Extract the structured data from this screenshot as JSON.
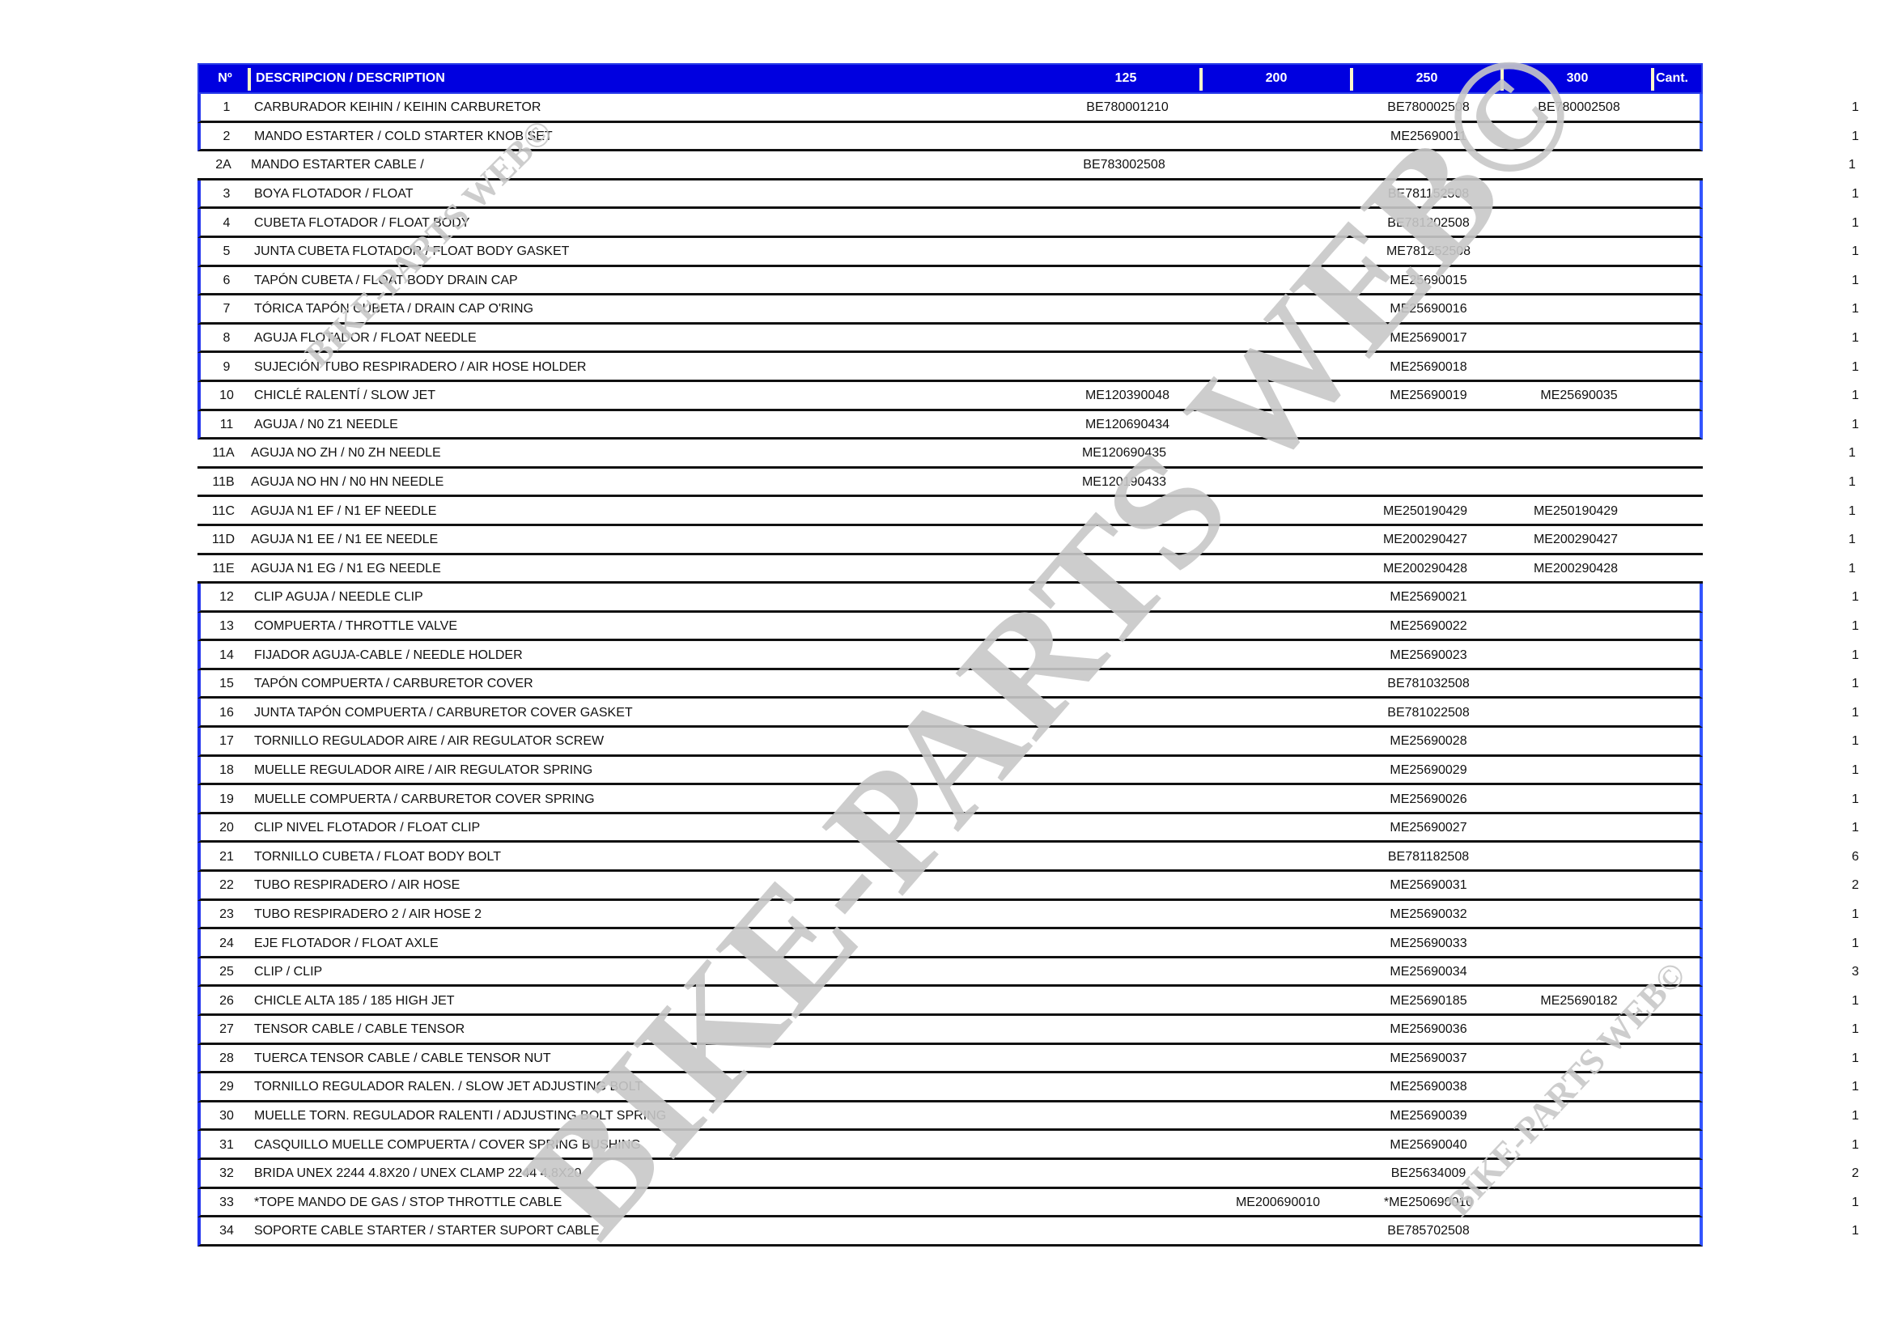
{
  "header": {
    "no": "Nº",
    "description": "DESCRIPCION / DESCRIPTION",
    "c125": "125",
    "c200": "200",
    "c250": "250",
    "c300": "300",
    "qty": "Cant."
  },
  "watermark": {
    "text": "BIKE-PARTS WEB©"
  },
  "colors": {
    "header_bg": "#0000e0",
    "group_border": "#2233ee",
    "watermark": "#c8c8c8"
  },
  "rows": [
    {
      "no": "1",
      "desc": "CARBURADOR KEIHIN / KEIHIN CARBURETOR",
      "c125": "BE780001210",
      "c200": "",
      "c250": "BE780002508",
      "c300": "BE780002508",
      "qty": "1"
    },
    {
      "no": "2",
      "desc": "MANDO ESTARTER / COLD STARTER KNOB SET",
      "c125": "",
      "c200": "",
      "c250": "ME25690011",
      "c300": "",
      "qty": "1"
    },
    {
      "no": "2A",
      "desc": "MANDO ESTARTER CABLE /",
      "c125": "BE783002508",
      "c200": "",
      "c250": "",
      "c300": "",
      "qty": "1"
    },
    {
      "no": "3",
      "desc": "BOYA FLOTADOR / FLOAT",
      "c125": "",
      "c200": "",
      "c250": "BE781152508",
      "c300": "",
      "qty": "1"
    },
    {
      "no": "4",
      "desc": "CUBETA FLOTADOR / FLOAT BODY",
      "c125": "",
      "c200": "",
      "c250": "BE781202508",
      "c300": "",
      "qty": "1"
    },
    {
      "no": "5",
      "desc": "JUNTA CUBETA FLOTADOR / FLOAT BODY GASKET",
      "c125": "",
      "c200": "",
      "c250": "ME781252508",
      "c300": "",
      "qty": "1"
    },
    {
      "no": "6",
      "desc": "TAPÓN CUBETA / FLOAT BODY DRAIN CAP",
      "c125": "",
      "c200": "",
      "c250": "ME25690015",
      "c300": "",
      "qty": "1"
    },
    {
      "no": "7",
      "desc": "TÓRICA TAPÓN CUBETA / DRAIN CAP O'RING",
      "c125": "",
      "c200": "",
      "c250": "ME25690016",
      "c300": "",
      "qty": "1"
    },
    {
      "no": "8",
      "desc": "AGUJA FLOTADOR / FLOAT NEEDLE",
      "c125": "",
      "c200": "",
      "c250": "ME25690017",
      "c300": "",
      "qty": "1"
    },
    {
      "no": "9",
      "desc": "SUJECIÓN TUBO RESPIRADERO / AIR HOSE HOLDER",
      "c125": "",
      "c200": "",
      "c250": "ME25690018",
      "c300": "",
      "qty": "1"
    },
    {
      "no": "10",
      "desc": "CHICLÉ RALENTÍ / SLOW JET",
      "c125": "ME120390048",
      "c200": "",
      "c250": "ME25690019",
      "c300": "ME25690035",
      "qty": "1"
    },
    {
      "no": "11",
      "desc": "AGUJA /  N0 Z1 NEEDLE",
      "c125": "ME120690434",
      "c200": "",
      "c250": "",
      "c300": "",
      "qty": "1"
    },
    {
      "no": "11A",
      "desc": "AGUJA NO ZH / N0 ZH NEEDLE",
      "c125": "ME120690435",
      "c200": "",
      "c250": "",
      "c300": "",
      "qty": "1"
    },
    {
      "no": "11B",
      "desc": "AGUJA NO HN / N0 HN NEEDLE",
      "c125": "ME120190433",
      "c200": "",
      "c250": "",
      "c300": "",
      "qty": "1"
    },
    {
      "no": "11C",
      "desc": "AGUJA N1 EF / N1 EF NEEDLE",
      "c125": "",
      "c200": "",
      "c250": "ME250190429",
      "c300": "ME250190429",
      "qty": "1"
    },
    {
      "no": "11D",
      "desc": "AGUJA N1 EE / N1 EE NEEDLE",
      "c125": "",
      "c200": "",
      "c250": "ME200290427",
      "c300": "ME200290427",
      "qty": "1"
    },
    {
      "no": "11E",
      "desc": "AGUJA N1 EG / N1 EG NEEDLE",
      "c125": "",
      "c200": "",
      "c250": "ME200290428",
      "c300": "ME200290428",
      "qty": "1"
    },
    {
      "no": "12",
      "desc": "CLIP AGUJA / NEEDLE CLIP",
      "c125": "",
      "c200": "",
      "c250": "ME25690021",
      "c300": "",
      "qty": "1"
    },
    {
      "no": "13",
      "desc": "COMPUERTA / THROTTLE VALVE",
      "c125": "",
      "c200": "",
      "c250": "ME25690022",
      "c300": "",
      "qty": "1"
    },
    {
      "no": "14",
      "desc": "FIJADOR AGUJA-CABLE / NEEDLE HOLDER",
      "c125": "",
      "c200": "",
      "c250": "ME25690023",
      "c300": "",
      "qty": "1"
    },
    {
      "no": "15",
      "desc": "TAPÓN COMPUERTA / CARBURETOR COVER",
      "c125": "",
      "c200": "",
      "c250": "BE781032508",
      "c300": "",
      "qty": "1"
    },
    {
      "no": "16",
      "desc": "JUNTA TAPÓN COMPUERTA / CARBURETOR COVER GASKET",
      "c125": "",
      "c200": "",
      "c250": "BE781022508",
      "c300": "",
      "qty": "1"
    },
    {
      "no": "17",
      "desc": "TORNILLO REGULADOR AIRE / AIR REGULATOR SCREW",
      "c125": "",
      "c200": "",
      "c250": "ME25690028",
      "c300": "",
      "qty": "1"
    },
    {
      "no": "18",
      "desc": "MUELLE REGULADOR AIRE / AIR REGULATOR SPRING",
      "c125": "",
      "c200": "",
      "c250": "ME25690029",
      "c300": "",
      "qty": "1"
    },
    {
      "no": "19",
      "desc": "MUELLE COMPUERTA / CARBURETOR COVER SPRING",
      "c125": "",
      "c200": "",
      "c250": "ME25690026",
      "c300": "",
      "qty": "1"
    },
    {
      "no": "20",
      "desc": "CLIP NIVEL FLOTADOR / FLOAT CLIP",
      "c125": "",
      "c200": "",
      "c250": "ME25690027",
      "c300": "",
      "qty": "1"
    },
    {
      "no": "21",
      "desc": "TORNILLO CUBETA / FLOAT BODY BOLT",
      "c125": "",
      "c200": "",
      "c250": "BE781182508",
      "c300": "",
      "qty": "6"
    },
    {
      "no": "22",
      "desc": "TUBO RESPIRADERO / AIR HOSE",
      "c125": "",
      "c200": "",
      "c250": "ME25690031",
      "c300": "",
      "qty": "2"
    },
    {
      "no": "23",
      "desc": "TUBO RESPIRADERO 2 / AIR HOSE 2",
      "c125": "",
      "c200": "",
      "c250": "ME25690032",
      "c300": "",
      "qty": "1"
    },
    {
      "no": "24",
      "desc": "EJE FLOTADOR / FLOAT AXLE",
      "c125": "",
      "c200": "",
      "c250": "ME25690033",
      "c300": "",
      "qty": "1"
    },
    {
      "no": "25",
      "desc": "CLIP / CLIP",
      "c125": "",
      "c200": "",
      "c250": "ME25690034",
      "c300": "",
      "qty": "3"
    },
    {
      "no": "26",
      "desc": "CHICLE ALTA 185 / 185 HIGH JET",
      "c125": "",
      "c200": "",
      "c250": "ME25690185",
      "c300": "ME25690182",
      "qty": "1"
    },
    {
      "no": "27",
      "desc": "TENSOR CABLE / CABLE TENSOR",
      "c125": "",
      "c200": "",
      "c250": "ME25690036",
      "c300": "",
      "qty": "1"
    },
    {
      "no": "28",
      "desc": "TUERCA TENSOR CABLE / CABLE TENSOR NUT",
      "c125": "",
      "c200": "",
      "c250": "ME25690037",
      "c300": "",
      "qty": "1"
    },
    {
      "no": "29",
      "desc": "TORNILLO REGULADOR RALEN. / SLOW JET ADJUSTING BOLT",
      "c125": "",
      "c200": "",
      "c250": "ME25690038",
      "c300": "",
      "qty": "1"
    },
    {
      "no": "30",
      "desc": "MUELLE TORN. REGULADOR RALENTI / ADJUSTING BOLT SPRING",
      "c125": "",
      "c200": "",
      "c250": "ME25690039",
      "c300": "",
      "qty": "1"
    },
    {
      "no": "31",
      "desc": "CASQUILLO MUELLE COMPUERTA / COVER SPRING BUSHING",
      "c125": "",
      "c200": "",
      "c250": "ME25690040",
      "c300": "",
      "qty": "1"
    },
    {
      "no": "32",
      "desc": "BRIDA UNEX 2244 4.8X20 / UNEX CLAMP 2244 4.8X20",
      "c125": "",
      "c200": "",
      "c250": "BE25634009",
      "c300": "",
      "qty": "2"
    },
    {
      "no": "33",
      "desc": "*TOPE MANDO DE GAS / STOP THROTTLE CABLE",
      "c125": "",
      "c200": "ME200690010",
      "c250": "*ME250690010",
      "c300": "",
      "qty": "1"
    },
    {
      "no": "34",
      "desc": "SOPORTE CABLE STARTER / STARTER SUPORT CABLE",
      "c125": "",
      "c200": "",
      "c250": "BE785702508",
      "c300": "",
      "qty": "1"
    }
  ]
}
